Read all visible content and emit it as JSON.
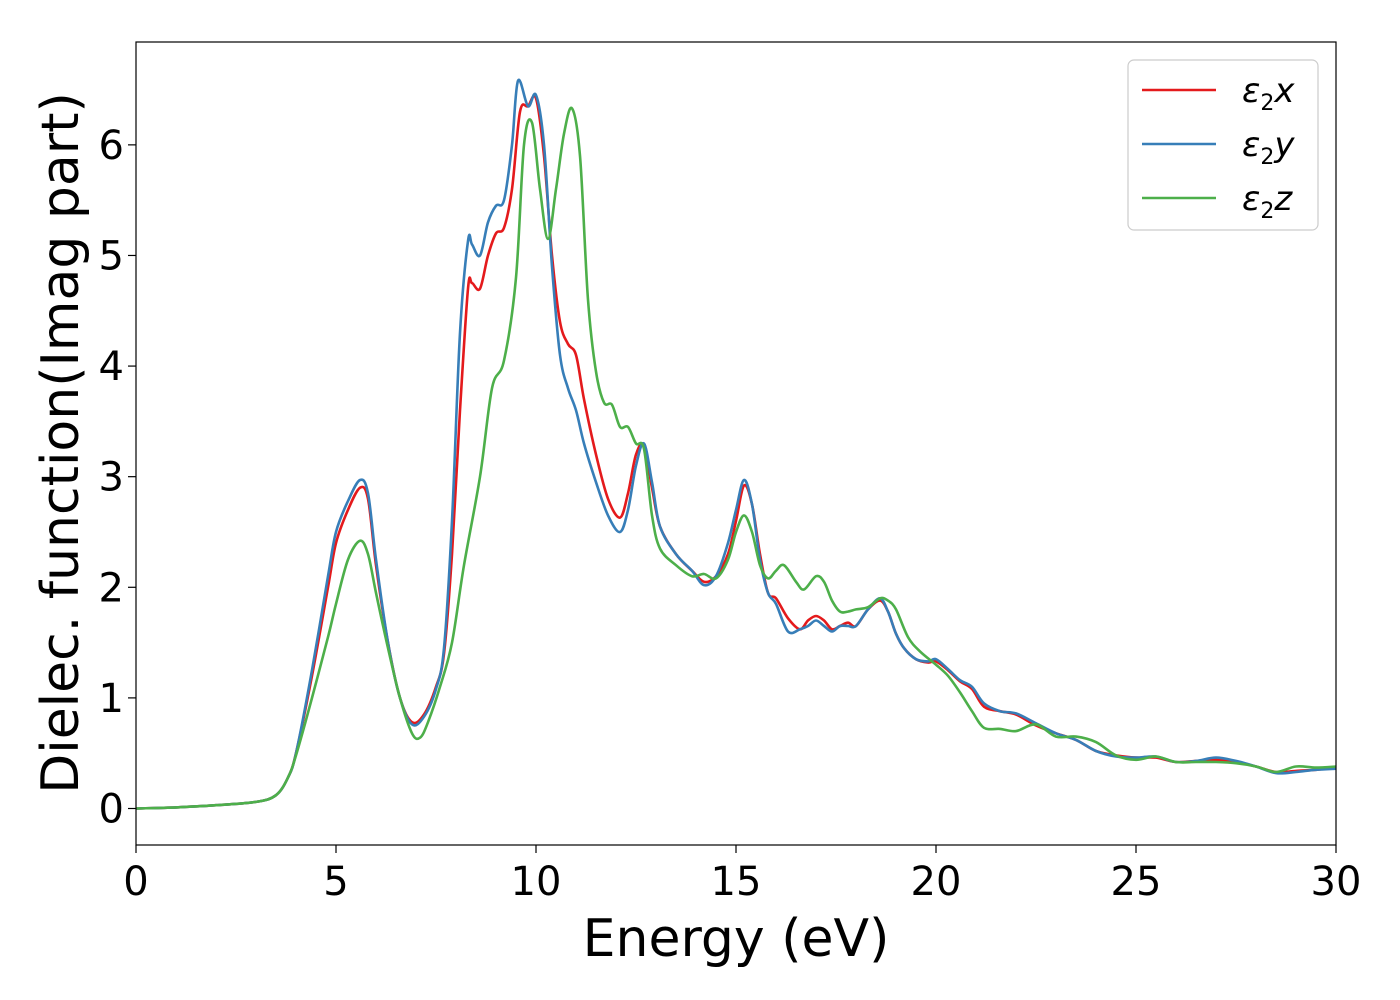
{
  "chart_data": {
    "type": "line",
    "xlabel": "Energy (eV)",
    "ylabel": "Dielec. function(Imag part)",
    "xlim": [
      0,
      30
    ],
    "ylim": [
      -0.33,
      6.93
    ],
    "xticks": [
      0,
      5,
      10,
      15,
      20,
      25,
      30
    ],
    "yticks": [
      0,
      1,
      2,
      3,
      4,
      5,
      6
    ],
    "grid": false,
    "legend_position": "top-right",
    "series": [
      {
        "name": "ε2x",
        "legend_base": "ε",
        "legend_sub": "2",
        "legend_suffix": "x",
        "color": "#e41a1c",
        "x": [
          0,
          1,
          2,
          3,
          3.5,
          3.8,
          4.0,
          4.4,
          4.8,
          5.0,
          5.3,
          5.6,
          5.8,
          6.0,
          6.3,
          6.6,
          6.9,
          7.2,
          7.5,
          7.7,
          7.9,
          8.1,
          8.3,
          8.4,
          8.6,
          8.8,
          9.0,
          9.2,
          9.4,
          9.6,
          9.8,
          10.0,
          10.2,
          10.4,
          10.6,
          10.8,
          11.0,
          11.2,
          11.5,
          11.8,
          12.1,
          12.3,
          12.5,
          12.7,
          12.9,
          13.1,
          13.5,
          13.9,
          14.2,
          14.5,
          14.8,
          15.0,
          15.2,
          15.4,
          15.6,
          15.8,
          16.0,
          16.3,
          16.6,
          16.8,
          17.0,
          17.2,
          17.4,
          17.6,
          17.8,
          18.0,
          18.3,
          18.6,
          18.8,
          19.0,
          19.2,
          19.5,
          19.8,
          20.0,
          20.3,
          20.6,
          20.9,
          21.2,
          21.6,
          22.0,
          22.5,
          23.0,
          23.5,
          24.0,
          24.5,
          25.0,
          25.5,
          26.0,
          26.5,
          27.0,
          27.5,
          28.0,
          28.5,
          29.0,
          29.5,
          30.0
        ],
        "y": [
          0.0,
          0.01,
          0.03,
          0.06,
          0.12,
          0.28,
          0.5,
          1.2,
          2.0,
          2.4,
          2.7,
          2.9,
          2.8,
          2.2,
          1.5,
          1.0,
          0.78,
          0.85,
          1.1,
          1.4,
          2.3,
          3.6,
          4.7,
          4.75,
          4.7,
          5.0,
          5.2,
          5.25,
          5.6,
          6.3,
          6.35,
          6.42,
          5.9,
          5.0,
          4.4,
          4.2,
          4.1,
          3.7,
          3.2,
          2.8,
          2.63,
          2.85,
          3.2,
          3.28,
          2.9,
          2.55,
          2.3,
          2.15,
          2.05,
          2.1,
          2.3,
          2.6,
          2.92,
          2.75,
          2.3,
          1.95,
          1.9,
          1.72,
          1.62,
          1.7,
          1.74,
          1.7,
          1.62,
          1.65,
          1.68,
          1.65,
          1.8,
          1.88,
          1.78,
          1.58,
          1.45,
          1.35,
          1.32,
          1.33,
          1.25,
          1.15,
          1.08,
          0.92,
          0.88,
          0.85,
          0.75,
          0.68,
          0.62,
          0.52,
          0.48,
          0.46,
          0.46,
          0.42,
          0.43,
          0.44,
          0.42,
          0.38,
          0.33,
          0.34,
          0.35,
          0.37
        ]
      },
      {
        "name": "ε2y",
        "legend_base": "ε",
        "legend_sub": "2",
        "legend_suffix": "y",
        "color": "#377eb8",
        "x": [
          0,
          1,
          2,
          3,
          3.5,
          3.8,
          4.0,
          4.4,
          4.8,
          5.0,
          5.3,
          5.6,
          5.8,
          6.0,
          6.3,
          6.6,
          6.9,
          7.2,
          7.5,
          7.7,
          7.9,
          8.1,
          8.3,
          8.4,
          8.6,
          8.8,
          9.0,
          9.2,
          9.4,
          9.55,
          9.8,
          10.0,
          10.2,
          10.4,
          10.6,
          10.8,
          11.0,
          11.2,
          11.5,
          11.8,
          12.1,
          12.3,
          12.5,
          12.7,
          12.9,
          13.1,
          13.5,
          13.9,
          14.2,
          14.5,
          14.8,
          15.0,
          15.2,
          15.4,
          15.6,
          15.8,
          16.0,
          16.3,
          16.6,
          16.8,
          17.0,
          17.2,
          17.4,
          17.6,
          17.8,
          18.0,
          18.3,
          18.6,
          18.8,
          19.0,
          19.2,
          19.5,
          19.8,
          20.0,
          20.3,
          20.6,
          20.9,
          21.2,
          21.6,
          22.0,
          22.5,
          23.0,
          23.5,
          24.0,
          24.5,
          25.0,
          25.5,
          26.0,
          26.5,
          27.0,
          27.5,
          28.0,
          28.5,
          29.0,
          29.5,
          30.0
        ],
        "y": [
          0.0,
          0.01,
          0.03,
          0.06,
          0.12,
          0.28,
          0.5,
          1.25,
          2.1,
          2.5,
          2.78,
          2.97,
          2.85,
          2.25,
          1.5,
          1.0,
          0.76,
          0.83,
          1.08,
          1.45,
          2.6,
          4.3,
          5.13,
          5.1,
          5.0,
          5.3,
          5.45,
          5.5,
          6.0,
          6.58,
          6.35,
          6.45,
          6.0,
          4.9,
          4.1,
          3.8,
          3.6,
          3.3,
          2.95,
          2.65,
          2.5,
          2.7,
          3.1,
          3.3,
          2.95,
          2.55,
          2.3,
          2.15,
          2.02,
          2.1,
          2.4,
          2.7,
          2.97,
          2.75,
          2.25,
          1.95,
          1.85,
          1.6,
          1.62,
          1.65,
          1.7,
          1.65,
          1.6,
          1.65,
          1.65,
          1.65,
          1.8,
          1.9,
          1.78,
          1.58,
          1.45,
          1.35,
          1.33,
          1.35,
          1.26,
          1.16,
          1.1,
          0.95,
          0.88,
          0.86,
          0.77,
          0.68,
          0.62,
          0.52,
          0.47,
          0.46,
          0.47,
          0.42,
          0.43,
          0.46,
          0.43,
          0.38,
          0.32,
          0.33,
          0.35,
          0.36
        ]
      },
      {
        "name": "ε2z",
        "legend_base": "ε",
        "legend_sub": "2",
        "legend_suffix": "z",
        "color": "#4daf4a",
        "x": [
          0,
          1,
          2,
          3,
          3.5,
          3.8,
          4.0,
          4.4,
          4.8,
          5.0,
          5.3,
          5.6,
          5.8,
          6.0,
          6.3,
          6.6,
          6.9,
          7.1,
          7.3,
          7.6,
          7.9,
          8.2,
          8.6,
          8.9,
          9.2,
          9.5,
          9.7,
          9.9,
          10.1,
          10.3,
          10.5,
          10.7,
          10.9,
          11.1,
          11.3,
          11.5,
          11.7,
          11.9,
          12.1,
          12.3,
          12.5,
          12.7,
          12.9,
          13.1,
          13.5,
          13.9,
          14.2,
          14.5,
          14.8,
          15.0,
          15.2,
          15.4,
          15.6,
          15.8,
          16.0,
          16.2,
          16.5,
          16.7,
          17.0,
          17.2,
          17.4,
          17.6,
          17.8,
          18.0,
          18.3,
          18.6,
          18.8,
          19.0,
          19.3,
          19.6,
          20.0,
          20.3,
          20.6,
          20.9,
          21.2,
          21.6,
          22.0,
          22.5,
          23.0,
          23.5,
          24.0,
          24.5,
          25.0,
          25.5,
          26.0,
          26.5,
          27.0,
          27.5,
          28.0,
          28.5,
          29.0,
          29.5,
          30.0
        ],
        "y": [
          0.0,
          0.01,
          0.03,
          0.06,
          0.12,
          0.28,
          0.48,
          1.0,
          1.55,
          1.85,
          2.25,
          2.42,
          2.3,
          1.95,
          1.45,
          1.0,
          0.68,
          0.64,
          0.78,
          1.1,
          1.5,
          2.2,
          3.0,
          3.8,
          4.05,
          4.8,
          6.0,
          6.2,
          5.6,
          5.15,
          5.6,
          6.1,
          6.33,
          5.9,
          4.6,
          3.95,
          3.67,
          3.65,
          3.45,
          3.45,
          3.3,
          3.25,
          2.65,
          2.35,
          2.2,
          2.1,
          2.12,
          2.08,
          2.25,
          2.5,
          2.65,
          2.5,
          2.2,
          2.08,
          2.15,
          2.2,
          2.05,
          1.98,
          2.1,
          2.05,
          1.88,
          1.78,
          1.78,
          1.8,
          1.82,
          1.9,
          1.88,
          1.8,
          1.55,
          1.42,
          1.3,
          1.2,
          1.05,
          0.88,
          0.73,
          0.72,
          0.7,
          0.76,
          0.65,
          0.65,
          0.6,
          0.48,
          0.44,
          0.47,
          0.42,
          0.42,
          0.42,
          0.41,
          0.38,
          0.33,
          0.38,
          0.37,
          0.38
        ]
      }
    ]
  }
}
